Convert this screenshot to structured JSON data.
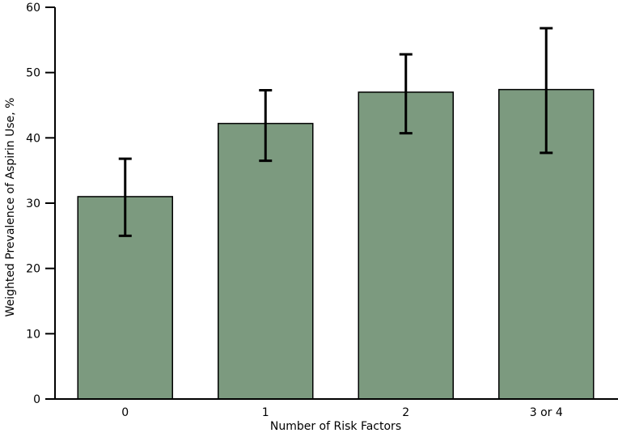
{
  "chart_data": {
    "type": "bar",
    "title": "",
    "xlabel": "Number of Risk Factors",
    "ylabel": "Weighted Prevalence of Aspirin Use, %",
    "categories": [
      "0",
      "1",
      "2",
      "3 or 4"
    ],
    "values": [
      31.0,
      42.2,
      47.0,
      47.4
    ],
    "error_low": [
      25.0,
      36.5,
      40.7,
      37.7
    ],
    "error_high": [
      36.8,
      47.3,
      52.8,
      56.8
    ],
    "ylim": [
      0,
      60
    ],
    "yticks": [
      0,
      10,
      20,
      30,
      40,
      50,
      60
    ],
    "grid": false,
    "legend": "none",
    "bar_fill": "#7C9A7F",
    "bar_stroke": "#000000",
    "error_color": "#000000",
    "axis_color": "#000000",
    "text_color": "#000000",
    "background": "#FFFFFF"
  }
}
